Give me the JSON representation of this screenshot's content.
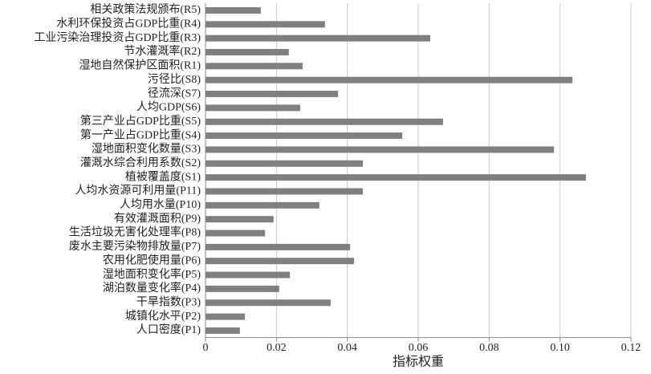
{
  "chart_data": {
    "type": "barh",
    "categories": [
      "相关政策法规颁布(R5)",
      "水利环保投资占GDP比重(R4)",
      "工业污染治理投资占GDP比重(R3)",
      "节水灌溉率(R2)",
      "湿地自然保护区面积(R1)",
      "污径比(S8)",
      "径流深(S7)",
      "人均GDP(S6)",
      "第三产业占GDP比重(S5)",
      "第一产业占GDP比重(S4)",
      "湿地面积变化数量(S3)",
      "灌溉水综合利用系数(S2)",
      "植被覆盖度(S1)",
      "人均水资源可利用量(P11)",
      "人均用水量(P10)",
      "有效灌溉面积(P9)",
      "生活垃圾无害化处理率(P8)",
      "废水主要污染物排放量(P7)",
      "农用化肥使用量(P6)",
      "湿地面积变化率(P5)",
      "湖泊数量变化率(P4)",
      "干旱指数(P3)",
      "城镇化水平(P2)",
      "人口密度(P1)"
    ],
    "values": [
      0.0156,
      0.0337,
      0.0634,
      0.0235,
      0.0274,
      0.1035,
      0.0374,
      0.0267,
      0.067,
      0.0555,
      0.0983,
      0.0444,
      0.1073,
      0.0444,
      0.0321,
      0.0192,
      0.0168,
      0.0408,
      0.0419,
      0.0238,
      0.0208,
      0.0353,
      0.0111,
      0.0097
    ],
    "color": "#808080",
    "xlabel": "指标权重",
    "xlim": [
      0,
      0.12
    ],
    "xticks": [
      0,
      0.02,
      0.04,
      0.06,
      0.08,
      {
        "value": 0.1,
        "label": "0.10"
      },
      0.12
    ],
    "grid": true
  }
}
